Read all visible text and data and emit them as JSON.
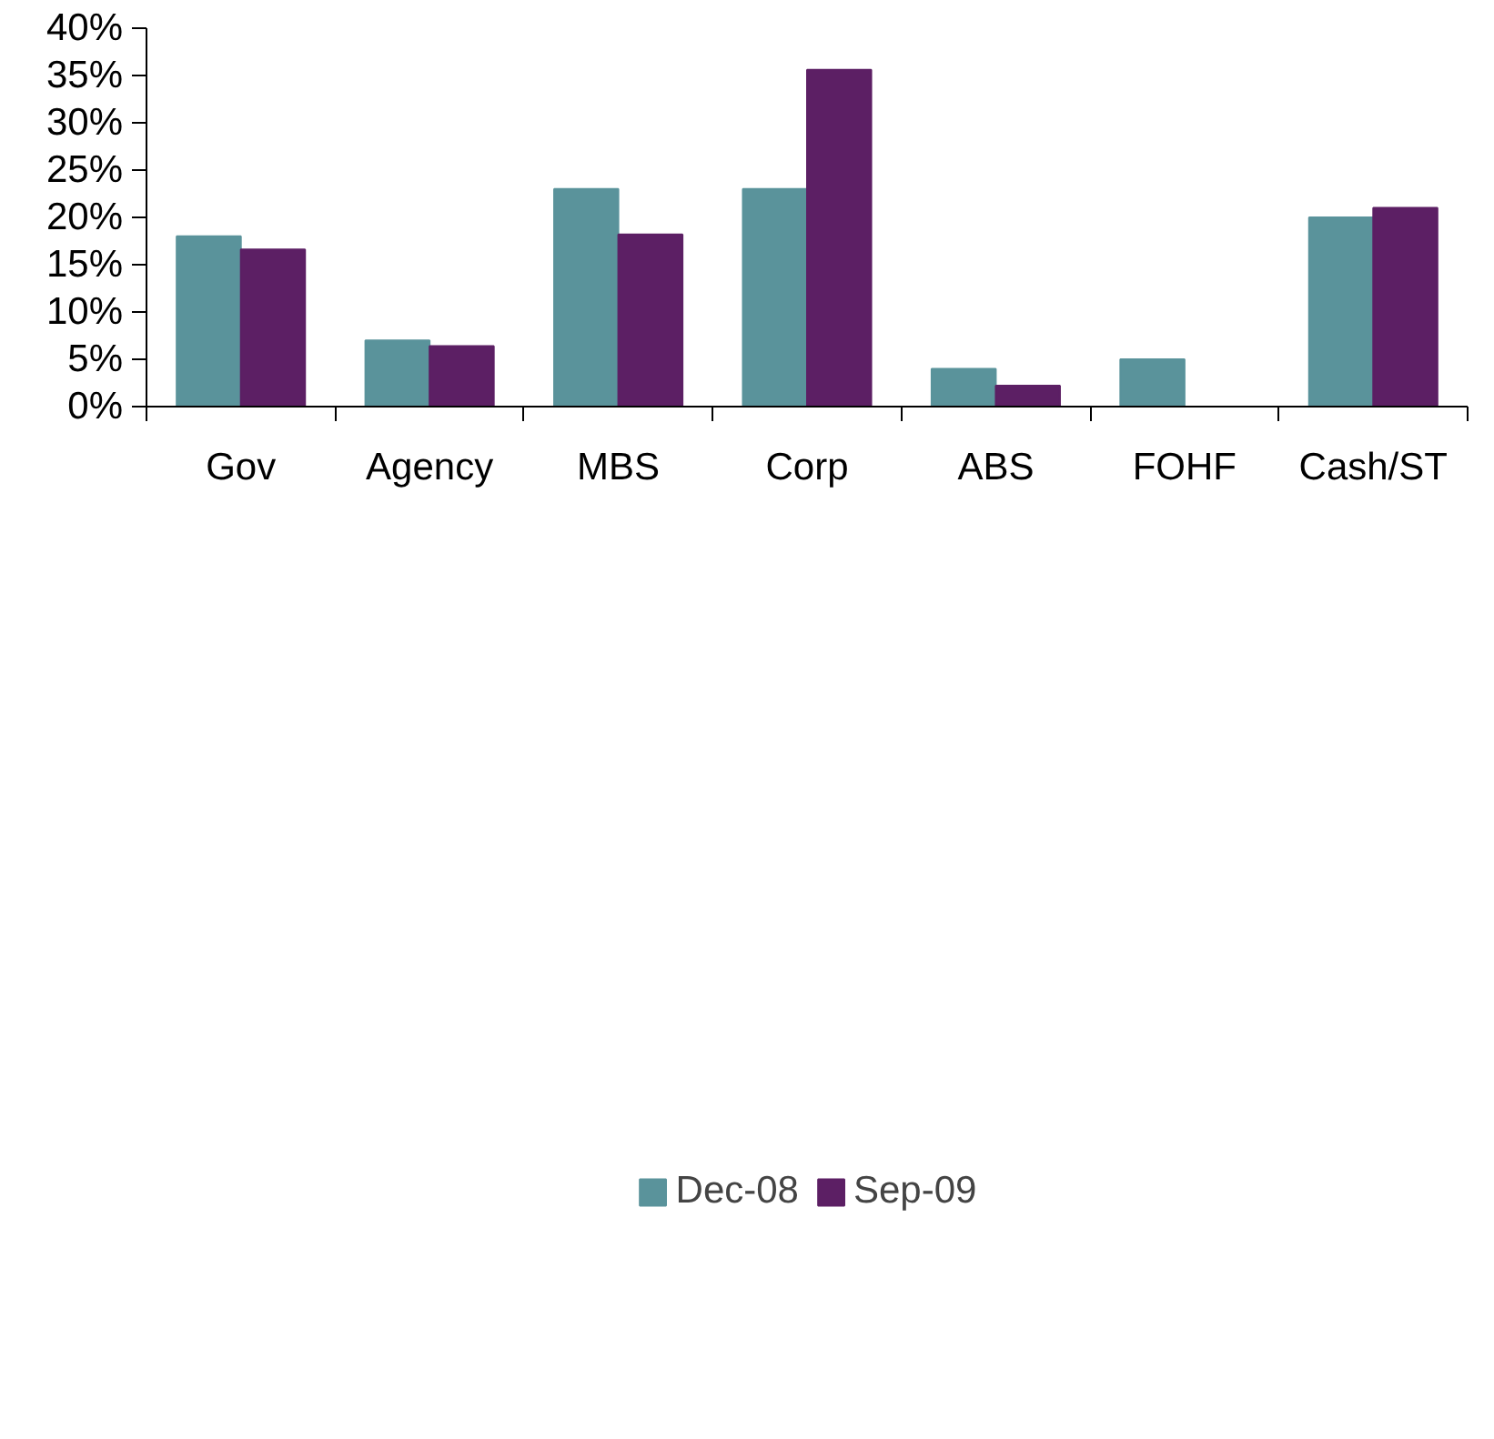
{
  "chart_data": {
    "type": "bar",
    "categories": [
      "Gov",
      "Agency",
      "MBS",
      "Corp",
      "ABS",
      "FOHF",
      "Cash/ST"
    ],
    "series": [
      {
        "name": "Dec-08",
        "color": "#5a939b",
        "values": [
          18,
          7,
          23,
          23,
          4,
          5,
          20
        ]
      },
      {
        "name": "Sep-09",
        "color": "#5c1f64",
        "values": [
          16.6,
          6.4,
          18.2,
          35.6,
          2.2,
          0,
          21
        ]
      }
    ],
    "ylim": [
      0,
      40
    ],
    "yticks": [
      {
        "value": 0,
        "label": "0%"
      },
      {
        "value": 5,
        "label": "5%"
      },
      {
        "value": 10,
        "label": "10%"
      },
      {
        "value": 15,
        "label": "15%"
      },
      {
        "value": 20,
        "label": "20%"
      },
      {
        "value": 25,
        "label": "25%"
      },
      {
        "value": 30,
        "label": "30%"
      },
      {
        "value": 35,
        "label": "35%"
      },
      {
        "value": 40,
        "label": "40%"
      }
    ],
    "grid": false,
    "legend": "bottom"
  }
}
